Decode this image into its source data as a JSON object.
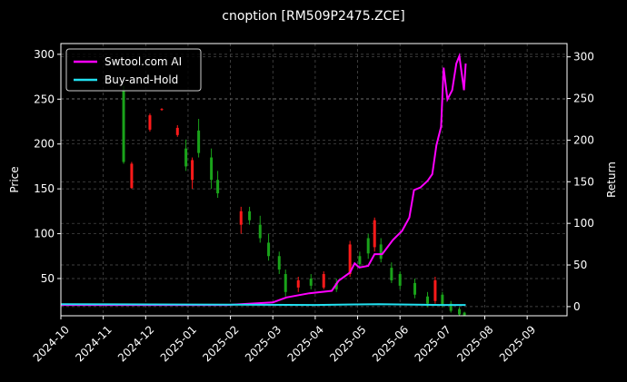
{
  "chart_data": {
    "type": "candlestick",
    "title": "cnoption [RM509P2475.ZCE]",
    "ylabel": "Price",
    "y2label": "Return",
    "xlim": [
      0,
      11.94
    ],
    "xticks": [
      {
        "value": 0,
        "label": "2024-10"
      },
      {
        "value": 1,
        "label": "2024-11"
      },
      {
        "value": 2,
        "label": "2024-12"
      },
      {
        "value": 3,
        "label": "2025-01"
      },
      {
        "value": 4,
        "label": "2025-02"
      },
      {
        "value": 5,
        "label": "2025-03"
      },
      {
        "value": 6,
        "label": "2025-04"
      },
      {
        "value": 7,
        "label": "2025-05"
      },
      {
        "value": 8,
        "label": "2025-06"
      },
      {
        "value": 9,
        "label": "2025-07"
      },
      {
        "value": 10,
        "label": "2025-08"
      },
      {
        "value": 11,
        "label": "2025-09"
      }
    ],
    "ylim": [
      8.5,
      312
    ],
    "yticks": [
      50,
      100,
      150,
      200,
      250,
      300
    ],
    "y2lim": [
      -11,
      316
    ],
    "y2ticks": [
      0,
      50,
      100,
      150,
      200,
      250,
      300
    ],
    "grid": true,
    "legend": "upper left",
    "up_color": "#ff1a1a",
    "down_color": "#1aa31a",
    "candles": {
      "x": [
        1.48,
        1.67,
        2.1,
        2.38,
        2.75,
        2.95,
        3.1,
        3.25,
        3.55,
        3.7,
        4.25,
        4.45,
        4.7,
        4.9,
        5.15,
        5.3,
        5.6,
        5.9,
        6.2,
        6.5,
        6.82,
        7.05,
        7.25,
        7.4,
        7.55,
        7.8,
        8.0,
        8.35,
        8.65,
        8.83,
        9.0,
        9.2,
        9.4,
        9.52
      ],
      "open": [
        259,
        151,
        216,
        238,
        210,
        195,
        160,
        215,
        185,
        160,
        110,
        125,
        110,
        90,
        75,
        55,
        40,
        50,
        40,
        45,
        55,
        75,
        95,
        85,
        88,
        62,
        55,
        45,
        30,
        25,
        32,
        22,
        16,
        12
      ],
      "high": [
        265,
        180,
        234,
        240,
        221,
        205,
        185,
        228,
        195,
        170,
        130,
        130,
        120,
        100,
        80,
        60,
        52,
        55,
        58,
        50,
        92,
        80,
        100,
        118,
        95,
        68,
        58,
        50,
        35,
        52,
        35,
        25,
        18,
        13
      ],
      "low": [
        178,
        150,
        214,
        237,
        208,
        170,
        150,
        185,
        150,
        140,
        100,
        110,
        90,
        70,
        55,
        30,
        35,
        38,
        38,
        35,
        52,
        62,
        72,
        80,
        68,
        45,
        38,
        28,
        18,
        22,
        18,
        12,
        9,
        8
      ],
      "close": [
        180,
        178,
        232,
        239,
        218,
        175,
        182,
        190,
        160,
        145,
        125,
        115,
        95,
        75,
        60,
        35,
        48,
        42,
        55,
        38,
        88,
        66,
        78,
        115,
        72,
        48,
        42,
        32,
        22,
        48,
        20,
        14,
        10,
        9
      ]
    },
    "series": [
      {
        "name": "Swtool.com AI",
        "color": "#ff00ff",
        "axis": "y2",
        "x": [
          0,
          3.93,
          5.0,
          5.32,
          5.86,
          6.39,
          6.55,
          6.82,
          6.93,
          7.04,
          7.25,
          7.4,
          7.58,
          7.83,
          8.05,
          8.22,
          8.33,
          8.48,
          8.65,
          8.76,
          8.86,
          8.97,
          9.03,
          9.12,
          9.23,
          9.33,
          9.4,
          9.51,
          9.55
        ],
        "values": [
          2,
          2,
          5,
          11,
          16,
          19,
          31,
          41,
          52,
          47,
          49,
          63,
          63,
          80,
          91,
          107,
          140,
          143,
          151,
          159,
          194,
          216,
          287,
          249,
          260,
          292,
          301,
          260,
          292
        ]
      },
      {
        "name": "Buy-and-Hold",
        "color": "#22e0f0",
        "axis": "y2",
        "x": [
          0,
          3,
          6,
          7.5,
          9,
          9.55
        ],
        "values": [
          3,
          2.5,
          2,
          3,
          2,
          2
        ]
      }
    ]
  }
}
